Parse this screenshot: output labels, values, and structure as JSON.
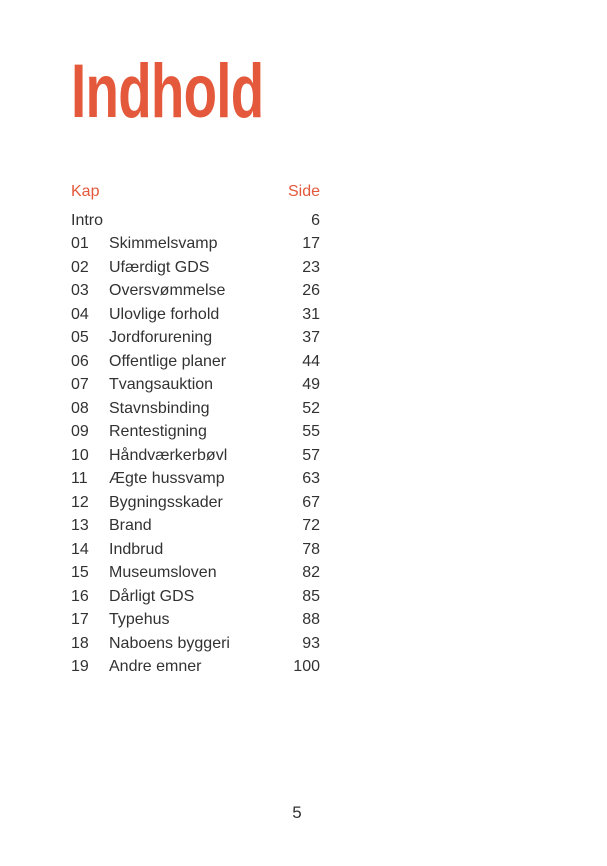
{
  "page": {
    "title": "Indhold",
    "footer_page_number": "5",
    "accent_color": "#E4593B",
    "text_color": "#323232"
  },
  "toc": {
    "chapter_header": "Kap",
    "page_header": "Side",
    "entries": [
      {
        "kap": "",
        "title": "Intro",
        "side": "6"
      },
      {
        "kap": "01",
        "title": "Skimmelsvamp",
        "side": "17"
      },
      {
        "kap": "02",
        "title": "Ufærdigt GDS",
        "side": "23"
      },
      {
        "kap": "03",
        "title": "Oversvømmelse",
        "side": "26"
      },
      {
        "kap": "04",
        "title": "Ulovlige forhold",
        "side": "31"
      },
      {
        "kap": "05",
        "title": "Jordforurening",
        "side": "37"
      },
      {
        "kap": "06",
        "title": "Offentlige planer",
        "side": "44"
      },
      {
        "kap": "07",
        "title": "Tvangsauktion",
        "side": "49"
      },
      {
        "kap": "08",
        "title": "Stavnsbinding",
        "side": "52"
      },
      {
        "kap": "09",
        "title": "Rentestigning",
        "side": "55"
      },
      {
        "kap": "10",
        "title": "Håndværkerbøvl",
        "side": "57"
      },
      {
        "kap": "11",
        "title": "Ægte hussvamp",
        "side": "63"
      },
      {
        "kap": "12",
        "title": "Bygningsskader",
        "side": "67"
      },
      {
        "kap": "13",
        "title": "Brand",
        "side": "72"
      },
      {
        "kap": "14",
        "title": "Indbrud",
        "side": "78"
      },
      {
        "kap": "15",
        "title": "Museumsloven",
        "side": "82"
      },
      {
        "kap": "16",
        "title": "Dårligt GDS",
        "side": "85"
      },
      {
        "kap": "17",
        "title": "Typehus",
        "side": "88"
      },
      {
        "kap": "18",
        "title": "Naboens byggeri",
        "side": "93"
      },
      {
        "kap": "19",
        "title": "Andre emner",
        "side": "100"
      }
    ]
  }
}
